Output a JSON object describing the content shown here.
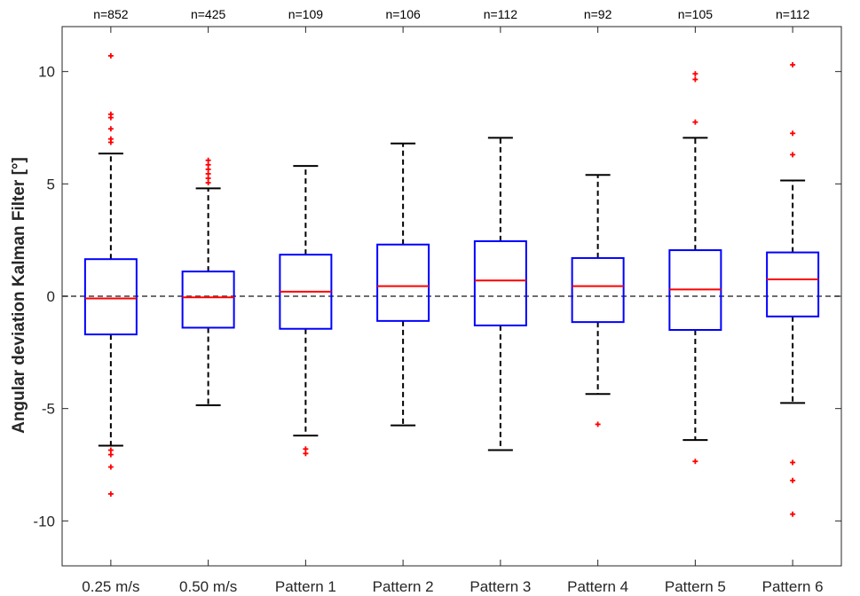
{
  "chart_data": {
    "type": "box",
    "ylabel": "Angular deviation Kalman Filter [°]",
    "ylim": [
      -12,
      12
    ],
    "yticks": [
      -10,
      -5,
      0,
      5,
      10
    ],
    "ytick_labels": [
      "-10",
      "-5",
      "0",
      "5",
      "10"
    ],
    "reference_line": 0,
    "categories": [
      "0.25 m/s",
      "0.50 m/s",
      "Pattern 1",
      "Pattern 2",
      "Pattern 3",
      "Pattern 4",
      "Pattern 5",
      "Pattern 6"
    ],
    "counts": [
      "n=852",
      "n=425",
      "n=109",
      "n=106",
      "n=112",
      "n=92",
      "n=105",
      "n=112"
    ],
    "boxes": [
      {
        "q1": -1.7,
        "median": -0.1,
        "q3": 1.65,
        "whisker_low": -6.65,
        "whisker_high": 6.35,
        "outliers": [
          10.7,
          8.1,
          7.95,
          7.45,
          7.0,
          6.85,
          -6.85,
          -7.05,
          -7.6,
          -8.8
        ]
      },
      {
        "q1": -1.4,
        "median": -0.05,
        "q3": 1.1,
        "whisker_low": -4.85,
        "whisker_high": 4.8,
        "outliers": [
          6.05,
          5.85,
          5.65,
          5.45,
          5.25,
          5.05
        ]
      },
      {
        "q1": -1.45,
        "median": 0.2,
        "q3": 1.85,
        "whisker_low": -6.2,
        "whisker_high": 5.8,
        "outliers": [
          -6.8,
          -7.0
        ]
      },
      {
        "q1": -1.1,
        "median": 0.45,
        "q3": 2.3,
        "whisker_low": -5.75,
        "whisker_high": 6.8,
        "outliers": []
      },
      {
        "q1": -1.3,
        "median": 0.7,
        "q3": 2.45,
        "whisker_low": -6.85,
        "whisker_high": 7.05,
        "outliers": []
      },
      {
        "q1": -1.15,
        "median": 0.45,
        "q3": 1.7,
        "whisker_low": -4.35,
        "whisker_high": 5.4,
        "outliers": [
          -5.7
        ]
      },
      {
        "q1": -1.5,
        "median": 0.3,
        "q3": 2.05,
        "whisker_low": -6.4,
        "whisker_high": 7.05,
        "outliers": [
          9.9,
          9.65,
          7.75,
          -7.35
        ]
      },
      {
        "q1": -0.9,
        "median": 0.75,
        "q3": 1.95,
        "whisker_low": -4.75,
        "whisker_high": 5.15,
        "outliers": [
          10.3,
          7.25,
          6.3,
          -7.4,
          -8.2,
          -9.7
        ]
      }
    ],
    "colors": {
      "box": "#0000ff",
      "median": "#ff0000",
      "whisker": "#000000",
      "outlier": "#ff0000",
      "reference_line": "#595959",
      "axis": "#262626"
    },
    "grid": false
  }
}
